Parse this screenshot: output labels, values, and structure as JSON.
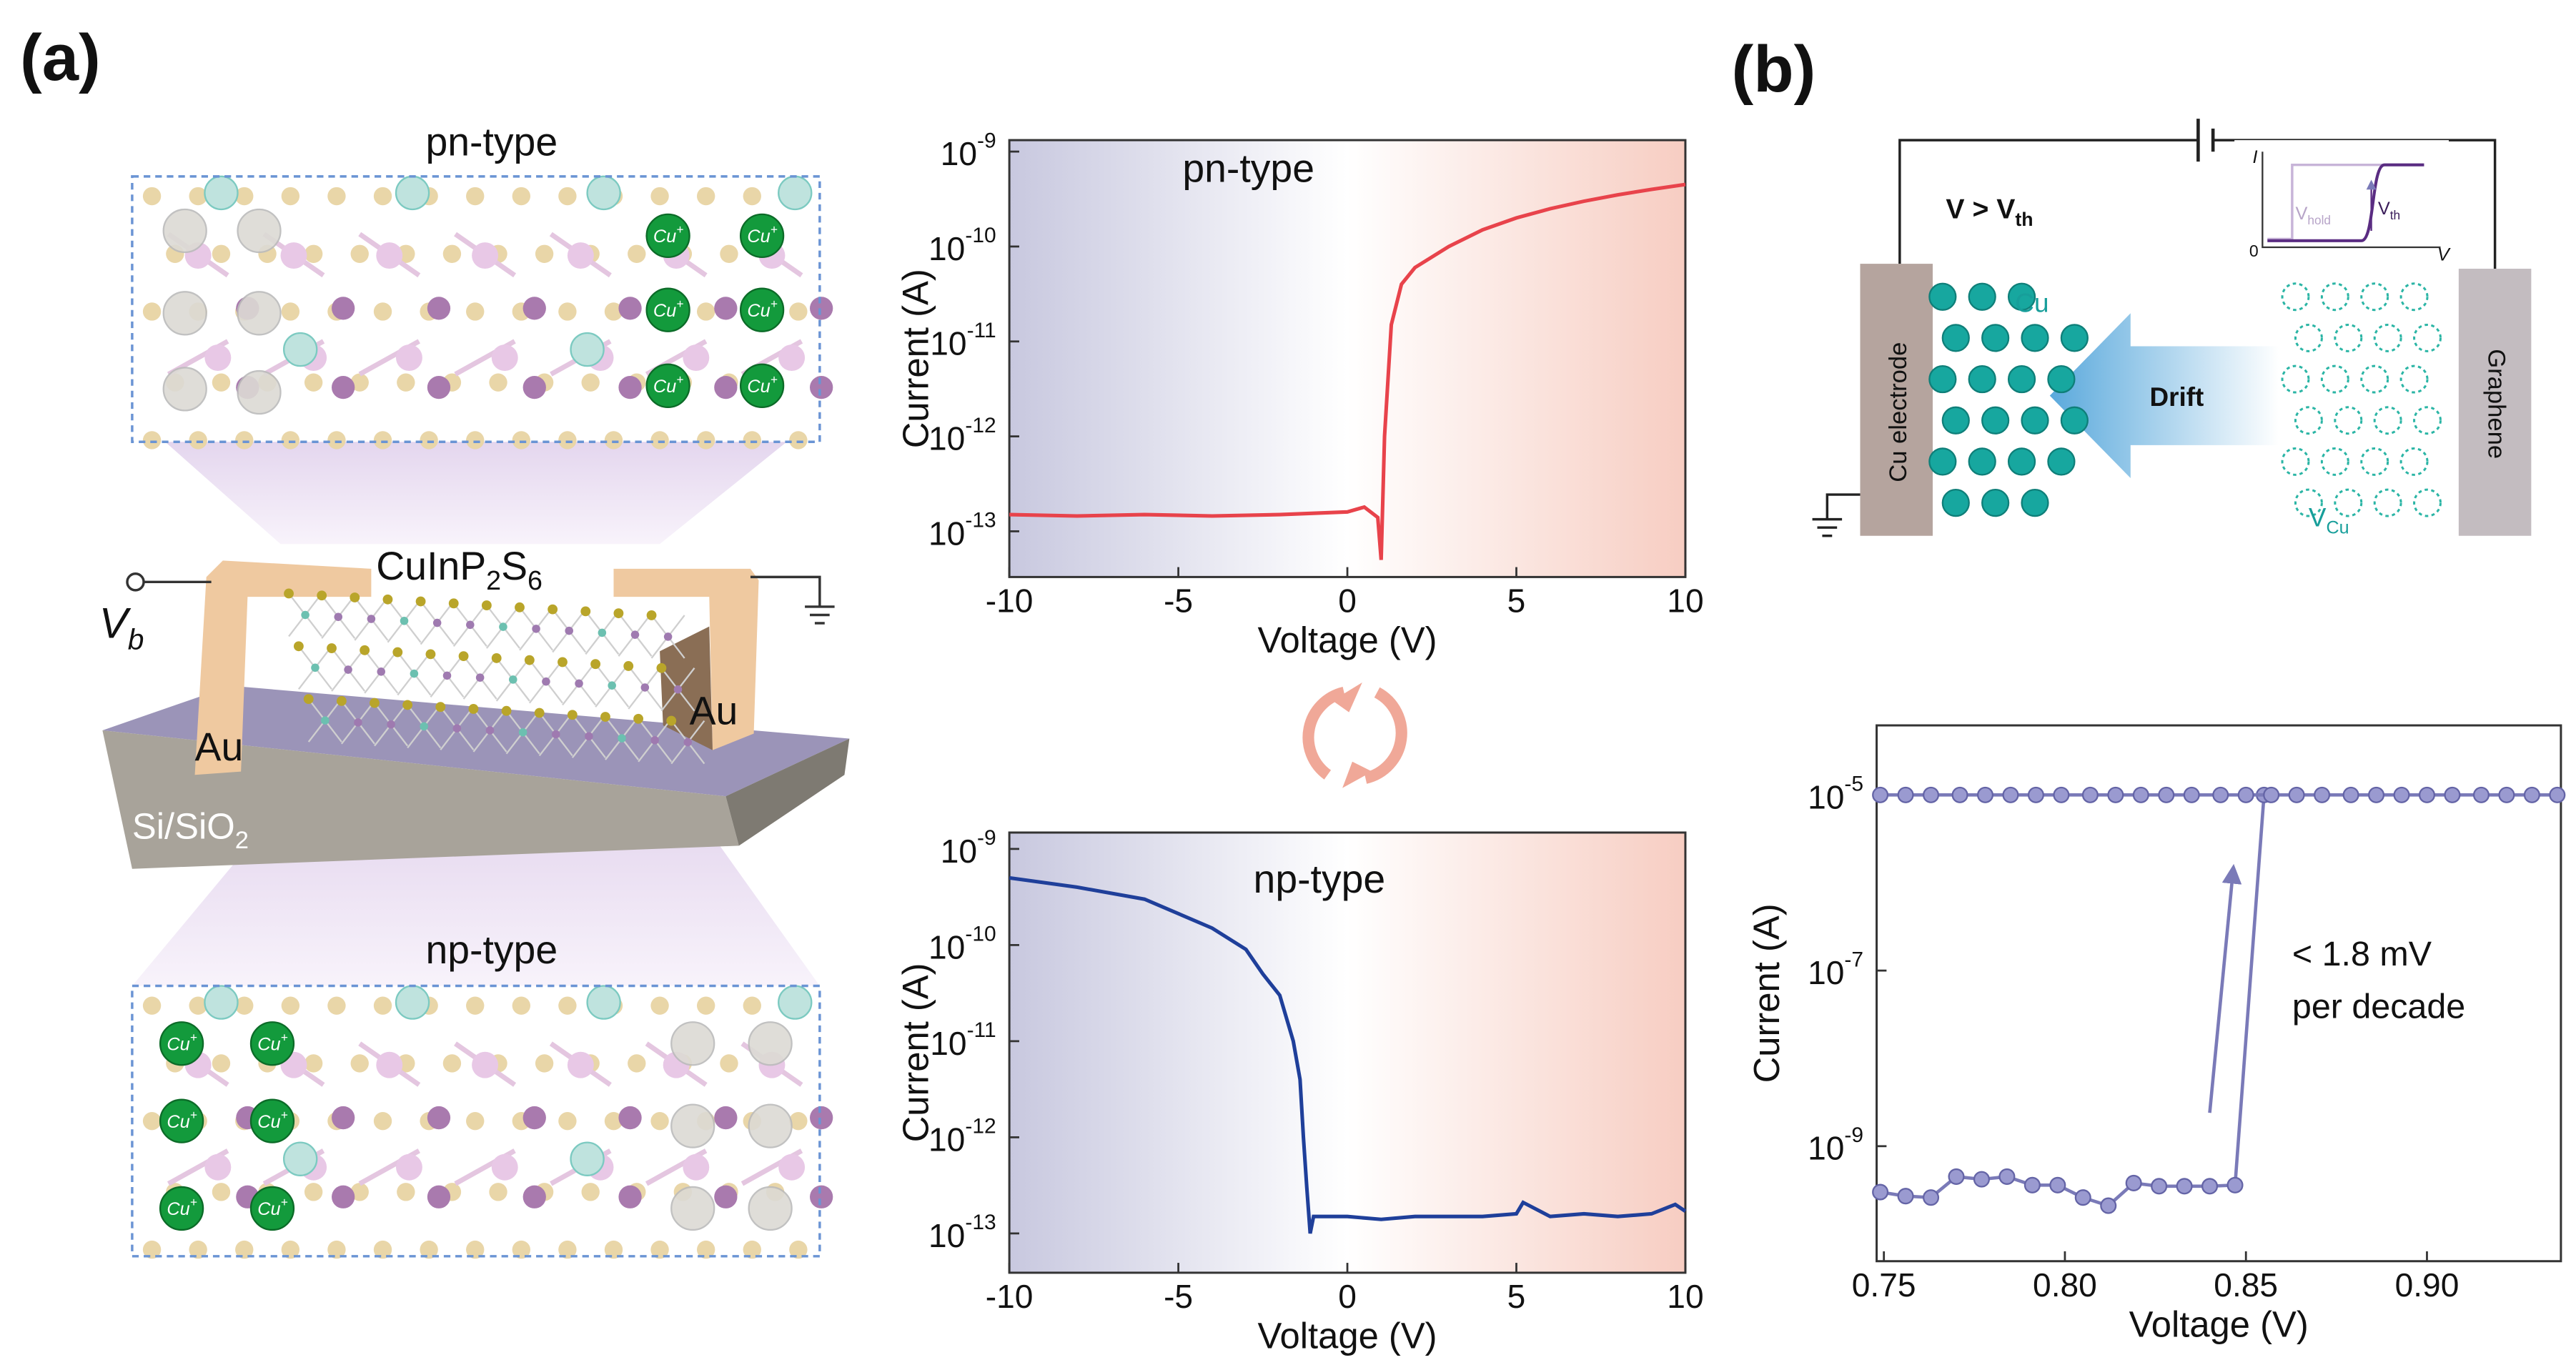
{
  "labels": {
    "a": "(a)",
    "b": "(b)"
  },
  "diagram_a": {
    "top_title": "pn-type",
    "bottom_title": "np-type",
    "ion": [
      "Cu",
      "+"
    ],
    "material": [
      "CuInP",
      "2",
      "S",
      "6"
    ],
    "bias": [
      "V",
      "b"
    ],
    "electrode_left": "Au",
    "electrode_right": "Au",
    "substrate": [
      "Si/SiO",
      "2"
    ]
  },
  "diagram_b": {
    "condition": [
      "V > V",
      "th"
    ],
    "ion": "Cu",
    "electrode": "Cu electrode",
    "arrow": "Drift",
    "counter_electrode": "Graphene",
    "vacancy": [
      "V",
      "Cu"
    ],
    "inset": {
      "y_axis": "I",
      "x_axis": "V",
      "origin": "0",
      "hold": [
        "V",
        "hold"
      ],
      "threshold": [
        "V",
        "th"
      ]
    }
  },
  "chart_data": [
    {
      "type": "line",
      "title": "pn-type",
      "x_label": "Voltage (V)",
      "y_label": "Current (A)",
      "log_y": true,
      "xlim": [
        -10,
        10
      ],
      "xticks": [
        -10,
        -5,
        0,
        5,
        10
      ],
      "ylim": [
        3.3e-14,
        1.32e-09
      ],
      "yticks": [
        {
          "value": 1e-13,
          "label": "10^-13"
        },
        {
          "value": 1e-12,
          "label": "10^-12"
        },
        {
          "value": 1e-11,
          "label": "10^-11"
        },
        {
          "value": 1e-10,
          "label": "10^-10"
        },
        {
          "value": 1e-09,
          "label": "10^-9"
        }
      ],
      "series": [
        {
          "color": "#e8434b",
          "x": [
            -10,
            -8,
            -6,
            -4,
            -2,
            0,
            0.5,
            0.9,
            1.0,
            1.1,
            1.3,
            1.6,
            2,
            3,
            4,
            5,
            6,
            7,
            8,
            9,
            10
          ],
          "values": [
            1.5e-13,
            1.45e-13,
            1.5e-13,
            1.45e-13,
            1.5e-13,
            1.6e-13,
            1.8e-13,
            1.4e-13,
            5e-14,
            1e-12,
            1.5e-11,
            4e-11,
            6e-11,
            1e-10,
            1.5e-10,
            2e-10,
            2.5e-10,
            3e-10,
            3.5e-10,
            4e-10,
            4.5e-10
          ]
        }
      ]
    },
    {
      "type": "line",
      "title": "np-type",
      "x_label": "Voltage (V)",
      "y_label": "Current (A)",
      "log_y": true,
      "xlim": [
        -10,
        10
      ],
      "xticks": [
        -10,
        -5,
        0,
        5,
        10
      ],
      "ylim": [
        3.9e-14,
        1.48e-09
      ],
      "yticks": [
        {
          "value": 1e-13,
          "label": "10^-13"
        },
        {
          "value": 1e-12,
          "label": "10^-12"
        },
        {
          "value": 1e-11,
          "label": "10^-11"
        },
        {
          "value": 1e-10,
          "label": "10^-10"
        },
        {
          "value": 1e-09,
          "label": "10^-9"
        }
      ],
      "series": [
        {
          "color": "#1f3f9a",
          "x": [
            -10,
            -8,
            -6,
            -4,
            -3,
            -2.5,
            -2,
            -1.6,
            -1.4,
            -1.3,
            -1.2,
            -1.1,
            -1.0,
            0,
            1,
            2,
            3,
            4,
            5,
            5.2,
            6,
            7,
            8,
            9,
            9.7,
            10
          ],
          "values": [
            5e-10,
            4e-10,
            3e-10,
            1.5e-10,
            9e-11,
            5e-11,
            3e-11,
            1e-11,
            4e-12,
            1e-12,
            3e-13,
            1e-13,
            1.5e-13,
            1.5e-13,
            1.4e-13,
            1.5e-13,
            1.5e-13,
            1.5e-13,
            1.6e-13,
            2.1e-13,
            1.5e-13,
            1.6e-13,
            1.5e-13,
            1.6e-13,
            2e-13,
            1.7e-13
          ]
        }
      ]
    },
    {
      "type": "line",
      "x_label": "Voltage (V)",
      "y_label": "Current (A)",
      "log_y": true,
      "markers": true,
      "annotation": [
        "< 1.8 mV",
        "per decade"
      ],
      "xlim": [
        0.748,
        0.937
      ],
      "xticks": [
        0.75,
        {
          "value": 0.8,
          "label": "0.80"
        },
        0.85,
        {
          "value": 0.9,
          "label": "0.90"
        }
      ],
      "ylim": [
        4.9e-11,
        6.2e-05
      ],
      "yticks": [
        {
          "value": 1e-09,
          "label": "10^-9"
        },
        {
          "value": 1e-07,
          "label": "10^-7"
        },
        {
          "value": 1e-05,
          "label": "10^-5"
        }
      ],
      "series": [
        {
          "color": "#7a7ab8",
          "x": [
            0.749,
            0.756,
            0.763,
            0.77,
            0.777,
            0.784,
            0.791,
            0.798,
            0.805,
            0.812,
            0.819,
            0.826,
            0.833,
            0.84,
            0.847,
            0.855
          ],
          "values": [
            3e-10,
            2.7e-10,
            2.6e-10,
            4.5e-10,
            4.2e-10,
            4.5e-10,
            3.6e-10,
            3.6e-10,
            2.6e-10,
            2.1e-10,
            3.8e-10,
            3.5e-10,
            3.5e-10,
            3.5e-10,
            3.6e-10,
            1e-05
          ]
        },
        {
          "color": "#7a7ab8",
          "x": [
            0.749,
            0.756,
            0.763,
            0.771,
            0.778,
            0.785,
            0.792,
            0.799,
            0.807,
            0.814,
            0.821,
            0.828,
            0.835,
            0.843,
            0.85,
            0.857,
            0.864,
            0.871,
            0.879,
            0.886,
            0.893,
            0.9,
            0.907,
            0.915,
            0.922,
            0.929,
            0.936
          ],
          "values": [
            1e-05,
            1e-05,
            1e-05,
            1e-05,
            1e-05,
            1e-05,
            1e-05,
            1e-05,
            1e-05,
            1e-05,
            1e-05,
            1e-05,
            1e-05,
            1e-05,
            1e-05,
            1e-05,
            1e-05,
            1e-05,
            1e-05,
            1e-05,
            1e-05,
            1e-05,
            1e-05,
            1e-05,
            1e-05,
            1e-05,
            1e-05
          ]
        }
      ]
    }
  ]
}
